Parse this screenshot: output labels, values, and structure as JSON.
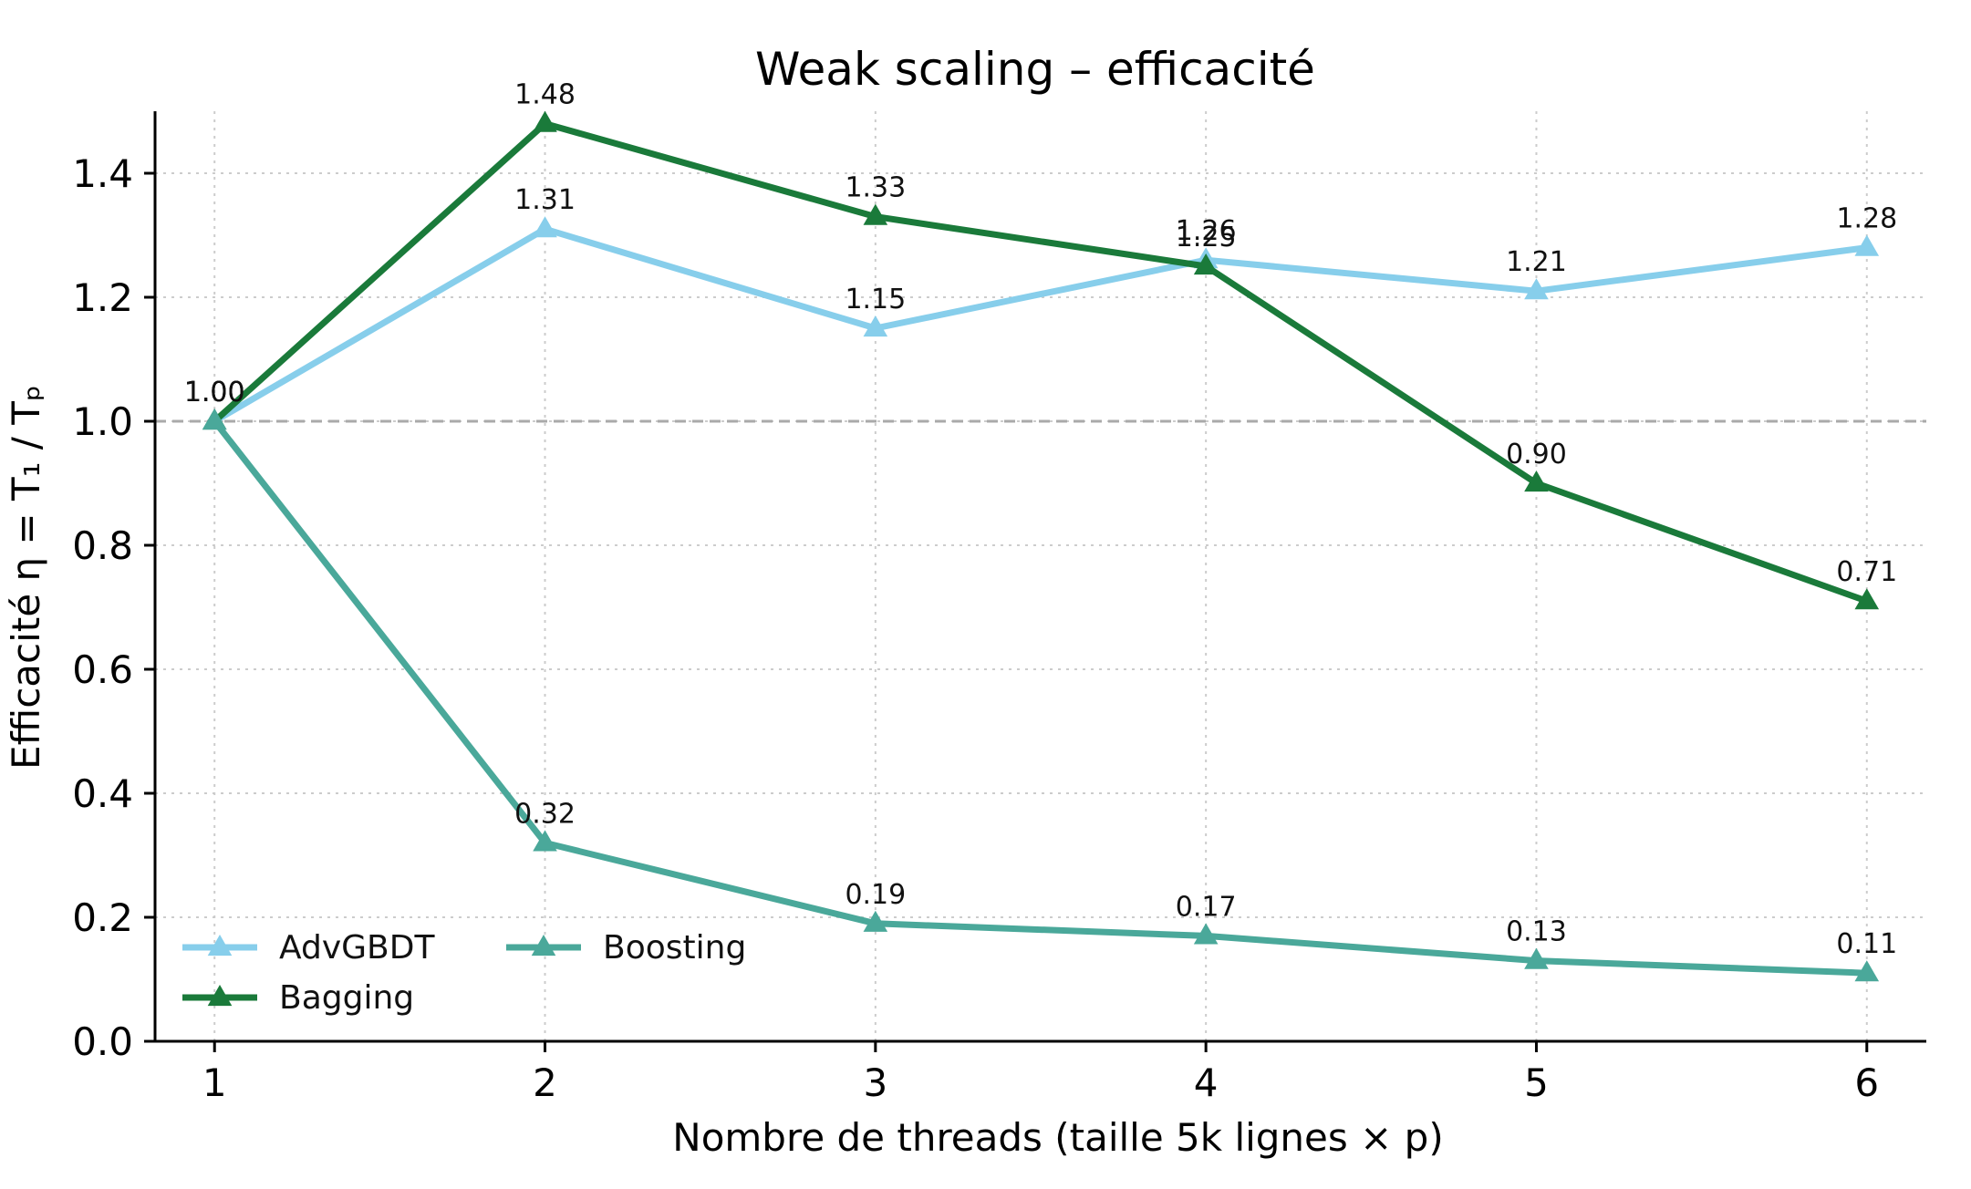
{
  "chart_data": {
    "type": "line",
    "title": "Weak scaling – efficacité",
    "xlabel": "Nombre de threads (taille 5k lignes × p)",
    "ylabel": "Efficacité  η = T₁ / Tₚ",
    "x": [
      1,
      2,
      3,
      4,
      5,
      6
    ],
    "xlim": [
      0.82,
      6.18
    ],
    "ylim": [
      0.0,
      1.5
    ],
    "xticks": [
      1,
      2,
      3,
      4,
      5,
      6
    ],
    "yticks": [
      0.0,
      0.2,
      0.4,
      0.6,
      0.8,
      1.0,
      1.2,
      1.4
    ],
    "ytick_labels": [
      "0.0",
      "0.2",
      "0.4",
      "0.6",
      "0.8",
      "1.0",
      "1.2",
      "1.4"
    ],
    "grid": true,
    "reference_line": 1.0,
    "legend_position": "lower-left",
    "series": [
      {
        "name": "AdvGBDT",
        "color": "#87ceeb",
        "marker": "triangle",
        "values": [
          1.0,
          1.31,
          1.15,
          1.26,
          1.21,
          1.28
        ],
        "labels": [
          "1.00",
          "1.31",
          "1.15",
          "1.26",
          "1.21",
          "1.28"
        ]
      },
      {
        "name": "Bagging",
        "color": "#1a7a3a",
        "marker": "triangle",
        "values": [
          1.0,
          1.48,
          1.33,
          1.25,
          0.9,
          0.71
        ],
        "labels": [
          "1.00",
          "1.48",
          "1.33",
          "1.25",
          "0.90",
          "0.71"
        ]
      },
      {
        "name": "Boosting",
        "color": "#4aa89a",
        "marker": "triangle",
        "values": [
          1.0,
          0.32,
          0.19,
          0.17,
          0.13,
          0.11
        ],
        "labels": [
          "1.00",
          "0.32",
          "0.19",
          "0.17",
          "0.13",
          "0.11"
        ]
      }
    ]
  }
}
